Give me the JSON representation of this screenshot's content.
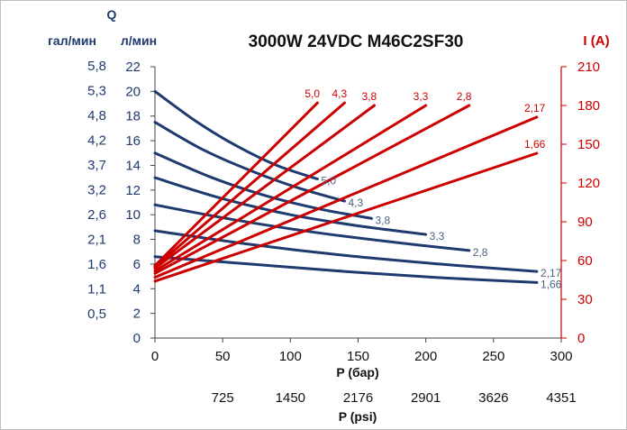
{
  "chart_data": {
    "type": "line",
    "title": "3000W 24VDC M46C2SF30",
    "left_axis": {
      "header": "Q",
      "unit_gpm": "гал/мин",
      "unit_lpm": "л/мин",
      "lpm_ticks": [
        "0",
        "2",
        "4",
        "6",
        "8",
        "10",
        "12",
        "14",
        "16",
        "18",
        "20",
        "22"
      ],
      "gpm_ticks": [
        "0,5",
        "1,1",
        "1,6",
        "2,1",
        "2,6",
        "3,2",
        "3,7",
        "4,2",
        "4,8",
        "5,3",
        "5,8"
      ],
      "range": [
        0,
        22
      ]
    },
    "right_axis": {
      "label": "I (A)",
      "ticks": [
        "0",
        "30",
        "60",
        "90",
        "120",
        "150",
        "180",
        "210"
      ],
      "range": [
        0,
        210
      ],
      "color": "#cc0000"
    },
    "x_axis": {
      "label": "P (бар)",
      "ticks": [
        "0",
        "50",
        "100",
        "150",
        "200",
        "250",
        "300"
      ],
      "range": [
        0,
        300
      ]
    },
    "x2_axis": {
      "label": "P (psi)",
      "ticks": [
        "725",
        "1450",
        "2176",
        "2901",
        "3626",
        "4351"
      ]
    },
    "flow_color": "#1f3a6e",
    "current_color": "#cc0000",
    "flow_series": [
      {
        "name": "5,0",
        "x": [
          0,
          30,
          60,
          90,
          120
        ],
        "y": [
          20.0,
          17.6,
          15.6,
          14.0,
          12.9
        ]
      },
      {
        "name": "4,3",
        "x": [
          0,
          35,
          70,
          105,
          140
        ],
        "y": [
          17.5,
          15.3,
          13.6,
          12.2,
          11.1
        ]
      },
      {
        "name": "3,8",
        "x": [
          0,
          40,
          80,
          120,
          160
        ],
        "y": [
          15.0,
          13.1,
          11.6,
          10.5,
          9.7
        ]
      },
      {
        "name": "3,3",
        "x": [
          0,
          50,
          100,
          150,
          200
        ],
        "y": [
          13.0,
          11.3,
          10.0,
          9.1,
          8.4
        ]
      },
      {
        "name": "2,8",
        "x": [
          0,
          58,
          116,
          174,
          232
        ],
        "y": [
          10.8,
          9.6,
          8.6,
          7.8,
          7.1
        ]
      },
      {
        "name": "2,17",
        "x": [
          0,
          70,
          140,
          210,
          282
        ],
        "y": [
          8.7,
          7.6,
          6.7,
          6.0,
          5.4
        ]
      },
      {
        "name": "1,66",
        "x": [
          0,
          70,
          140,
          210,
          282
        ],
        "y": [
          6.6,
          6.0,
          5.4,
          4.9,
          4.5
        ]
      }
    ],
    "current_series": [
      {
        "name": "5,0",
        "x": [
          0,
          120
        ],
        "y": [
          56,
          182
        ]
      },
      {
        "name": "4,3",
        "x": [
          0,
          140
        ],
        "y": [
          55,
          182
        ]
      },
      {
        "name": "3,8",
        "x": [
          0,
          162
        ],
        "y": [
          54,
          180
        ]
      },
      {
        "name": "3,3",
        "x": [
          0,
          200
        ],
        "y": [
          52,
          180
        ]
      },
      {
        "name": "2,8",
        "x": [
          0,
          232
        ],
        "y": [
          50,
          180
        ]
      },
      {
        "name": "2,17",
        "x": [
          0,
          282
        ],
        "y": [
          47,
          171
        ]
      },
      {
        "name": "1,66",
        "x": [
          0,
          282
        ],
        "y": [
          44,
          143
        ]
      }
    ],
    "grid": false,
    "legend": "none"
  }
}
